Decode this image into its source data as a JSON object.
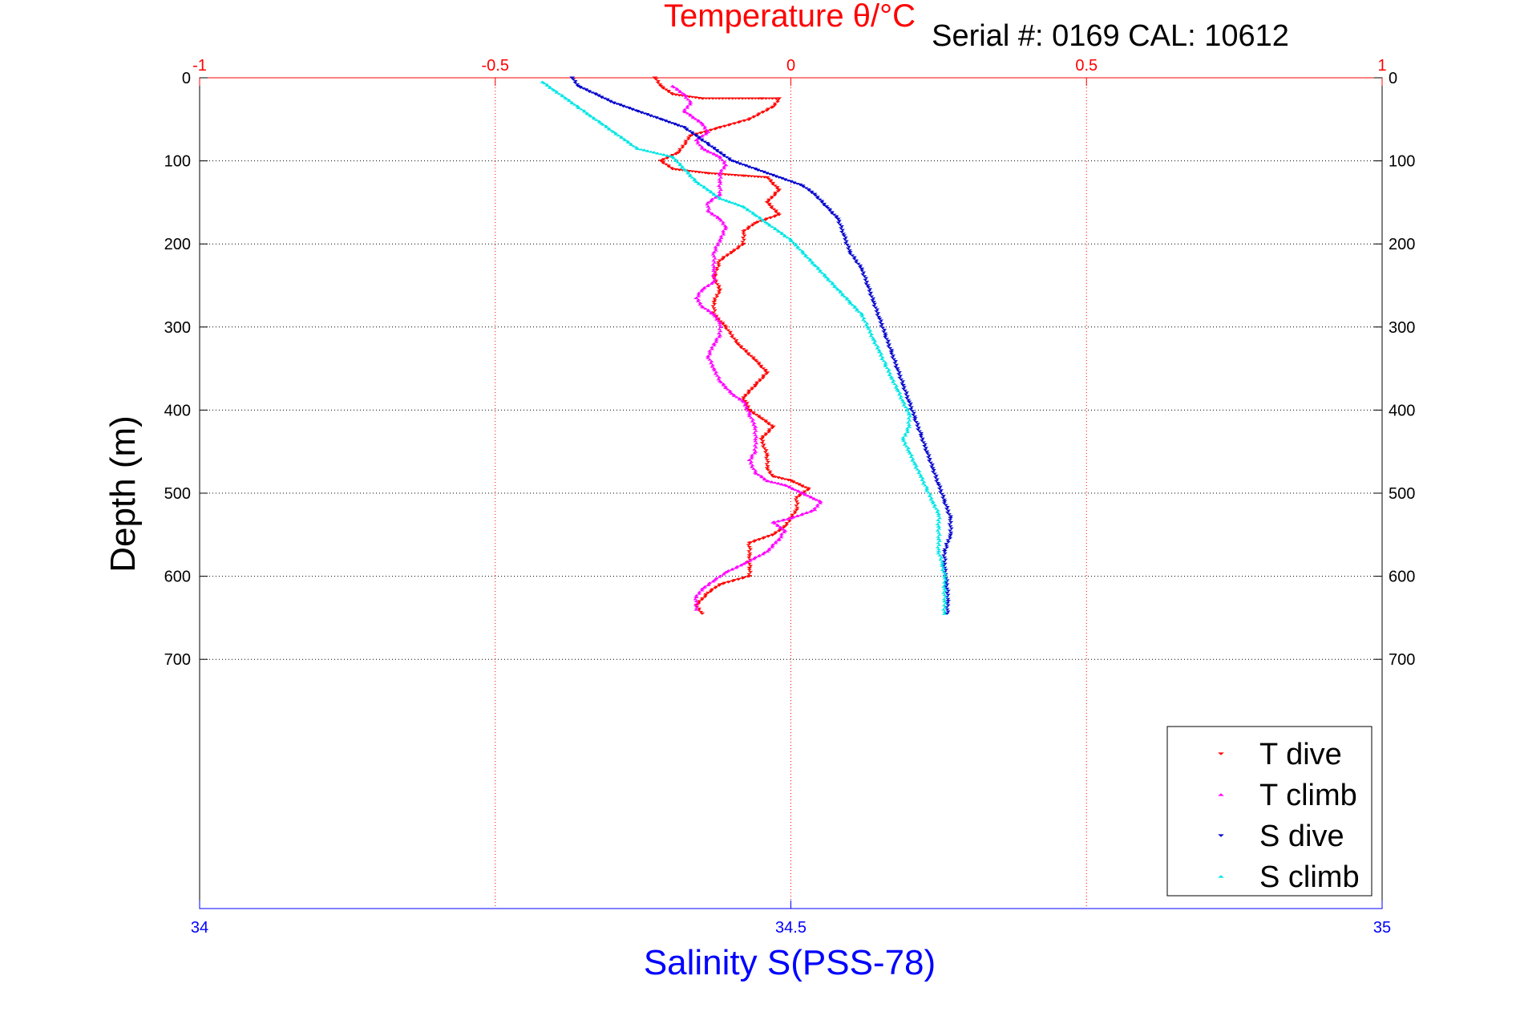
{
  "chart_data": {
    "type": "scatter",
    "title": "Temperature θ/°C",
    "subtitle": "Serial #: 0169 CAL: 10612",
    "ylabel": "Depth (m)",
    "xlabel_bottom": "Salinity S(PSS-78)",
    "xlabel_top": "Temperature θ/°C",
    "ylim": [
      0,
      1000
    ],
    "y_reversed": true,
    "y_ticks": [
      0,
      100,
      200,
      300,
      400,
      500,
      600,
      700
    ],
    "y_tick_labels": [
      "0",
      "100",
      "200",
      "300",
      "400",
      "500",
      "600",
      "700"
    ],
    "temperature_axis": {
      "lim": [
        -1,
        1
      ],
      "ticks": [
        -1,
        -0.5,
        0,
        0.5,
        1
      ],
      "tick_labels": [
        "-1",
        "-0.5",
        "0",
        "0.5",
        "1"
      ],
      "color": "#ff0000"
    },
    "salinity_axis": {
      "lim": [
        34,
        35
      ],
      "ticks": [
        34,
        34.5,
        35
      ],
      "tick_labels": [
        "34",
        "34.5",
        "35"
      ],
      "color": "#0000ff"
    },
    "grid": true,
    "legend_position": "bottom-right",
    "series": [
      {
        "name": "T dive",
        "axis": "temperature",
        "color": "#ff0000",
        "marker": "triangle-down",
        "points": [
          [
            -0.23,
            0
          ],
          [
            -0.22,
            10
          ],
          [
            -0.2,
            20
          ],
          [
            -0.15,
            25
          ],
          [
            -0.05,
            25
          ],
          [
            -0.02,
            25
          ],
          [
            -0.03,
            35
          ],
          [
            -0.07,
            50
          ],
          [
            -0.12,
            60
          ],
          [
            -0.17,
            70
          ],
          [
            -0.19,
            90
          ],
          [
            -0.22,
            100
          ],
          [
            -0.2,
            110
          ],
          [
            -0.14,
            115
          ],
          [
            -0.08,
            118
          ],
          [
            -0.04,
            120
          ],
          [
            -0.02,
            135
          ],
          [
            -0.04,
            150
          ],
          [
            -0.02,
            165
          ],
          [
            -0.06,
            175
          ],
          [
            -0.08,
            185
          ],
          [
            -0.08,
            200
          ],
          [
            -0.1,
            210
          ],
          [
            -0.12,
            220
          ],
          [
            -0.13,
            240
          ],
          [
            -0.12,
            255
          ],
          [
            -0.13,
            270
          ],
          [
            -0.13,
            285
          ],
          [
            -0.11,
            300
          ],
          [
            -0.09,
            320
          ],
          [
            -0.06,
            340
          ],
          [
            -0.04,
            355
          ],
          [
            -0.06,
            370
          ],
          [
            -0.08,
            385
          ],
          [
            -0.07,
            400
          ],
          [
            -0.05,
            410
          ],
          [
            -0.03,
            420
          ],
          [
            -0.05,
            435
          ],
          [
            -0.04,
            455
          ],
          [
            -0.04,
            470
          ],
          [
            -0.03,
            480
          ],
          [
            0.0,
            485
          ],
          [
            0.03,
            495
          ],
          [
            0.01,
            505
          ],
          [
            0.01,
            520
          ],
          [
            0.0,
            530
          ],
          [
            -0.01,
            540
          ],
          [
            -0.03,
            550
          ],
          [
            -0.07,
            560
          ],
          [
            -0.07,
            575
          ],
          [
            -0.07,
            590
          ],
          [
            -0.07,
            600
          ],
          [
            -0.12,
            610
          ],
          [
            -0.14,
            620
          ],
          [
            -0.16,
            635
          ],
          [
            -0.15,
            645
          ]
        ]
      },
      {
        "name": "T climb",
        "axis": "temperature",
        "color": "#ff00ff",
        "marker": "triangle-up",
        "points": [
          [
            -0.2,
            10
          ],
          [
            -0.18,
            20
          ],
          [
            -0.17,
            30
          ],
          [
            -0.18,
            40
          ],
          [
            -0.15,
            55
          ],
          [
            -0.14,
            65
          ],
          [
            -0.16,
            75
          ],
          [
            -0.15,
            85
          ],
          [
            -0.12,
            95
          ],
          [
            -0.11,
            105
          ],
          [
            -0.12,
            115
          ],
          [
            -0.12,
            125
          ],
          [
            -0.12,
            140
          ],
          [
            -0.14,
            150
          ],
          [
            -0.14,
            160
          ],
          [
            -0.12,
            170
          ],
          [
            -0.11,
            180
          ],
          [
            -0.12,
            195
          ],
          [
            -0.13,
            210
          ],
          [
            -0.13,
            230
          ],
          [
            -0.13,
            245
          ],
          [
            -0.15,
            255
          ],
          [
            -0.16,
            265
          ],
          [
            -0.15,
            275
          ],
          [
            -0.13,
            285
          ],
          [
            -0.12,
            295
          ],
          [
            -0.12,
            310
          ],
          [
            -0.13,
            320
          ],
          [
            -0.14,
            335
          ],
          [
            -0.13,
            350
          ],
          [
            -0.12,
            365
          ],
          [
            -0.1,
            380
          ],
          [
            -0.08,
            390
          ],
          [
            -0.07,
            405
          ],
          [
            -0.06,
            420
          ],
          [
            -0.06,
            435
          ],
          [
            -0.06,
            450
          ],
          [
            -0.07,
            460
          ],
          [
            -0.06,
            475
          ],
          [
            -0.04,
            485
          ],
          [
            -0.01,
            490
          ],
          [
            0.02,
            500
          ],
          [
            0.05,
            510
          ],
          [
            0.04,
            520
          ],
          [
            0.0,
            530
          ],
          [
            -0.03,
            535
          ],
          [
            -0.01,
            545
          ],
          [
            -0.02,
            555
          ],
          [
            -0.04,
            570
          ],
          [
            -0.08,
            585
          ],
          [
            -0.11,
            595
          ],
          [
            -0.13,
            605
          ],
          [
            -0.15,
            615
          ],
          [
            -0.16,
            625
          ],
          [
            -0.16,
            640
          ]
        ]
      },
      {
        "name": "S dive",
        "axis": "salinity",
        "color": "#0000cc",
        "marker": "triangle-down",
        "points": [
          [
            34.315,
            0
          ],
          [
            34.32,
            10
          ],
          [
            34.335,
            20
          ],
          [
            34.35,
            30
          ],
          [
            34.37,
            40
          ],
          [
            34.39,
            50
          ],
          [
            34.41,
            60
          ],
          [
            34.42,
            70
          ],
          [
            34.43,
            80
          ],
          [
            34.44,
            90
          ],
          [
            34.45,
            100
          ],
          [
            34.47,
            110
          ],
          [
            34.49,
            120
          ],
          [
            34.51,
            130
          ],
          [
            34.52,
            140
          ],
          [
            34.53,
            155
          ],
          [
            34.54,
            170
          ],
          [
            34.545,
            190
          ],
          [
            34.55,
            210
          ],
          [
            34.56,
            230
          ],
          [
            34.565,
            250
          ],
          [
            34.57,
            270
          ],
          [
            34.575,
            290
          ],
          [
            34.58,
            310
          ],
          [
            34.585,
            330
          ],
          [
            34.59,
            350
          ],
          [
            34.595,
            370
          ],
          [
            34.6,
            390
          ],
          [
            34.605,
            410
          ],
          [
            34.61,
            430
          ],
          [
            34.615,
            450
          ],
          [
            34.62,
            470
          ],
          [
            34.625,
            490
          ],
          [
            34.63,
            510
          ],
          [
            34.635,
            530
          ],
          [
            34.635,
            550
          ],
          [
            34.63,
            570
          ],
          [
            34.63,
            590
          ],
          [
            34.632,
            610
          ],
          [
            34.633,
            630
          ],
          [
            34.632,
            645
          ]
        ]
      },
      {
        "name": "S climb",
        "axis": "salinity",
        "color": "#00e5e5",
        "marker": "triangle-up",
        "points": [
          [
            34.29,
            5
          ],
          [
            34.3,
            15
          ],
          [
            34.31,
            25
          ],
          [
            34.32,
            35
          ],
          [
            34.33,
            45
          ],
          [
            34.34,
            55
          ],
          [
            34.35,
            65
          ],
          [
            34.36,
            75
          ],
          [
            34.37,
            85
          ],
          [
            34.4,
            95
          ],
          [
            34.41,
            110
          ],
          [
            34.42,
            125
          ],
          [
            34.43,
            135
          ],
          [
            34.44,
            145
          ],
          [
            34.46,
            155
          ],
          [
            34.47,
            165
          ],
          [
            34.48,
            175
          ],
          [
            34.49,
            185
          ],
          [
            34.5,
            195
          ],
          [
            34.51,
            210
          ],
          [
            34.52,
            225
          ],
          [
            34.53,
            240
          ],
          [
            34.54,
            255
          ],
          [
            34.55,
            270
          ],
          [
            34.56,
            285
          ],
          [
            34.565,
            300
          ],
          [
            34.57,
            315
          ],
          [
            34.575,
            330
          ],
          [
            34.58,
            345
          ],
          [
            34.585,
            360
          ],
          [
            34.59,
            375
          ],
          [
            34.595,
            390
          ],
          [
            34.6,
            405
          ],
          [
            34.6,
            420
          ],
          [
            34.595,
            435
          ],
          [
            34.6,
            450
          ],
          [
            34.605,
            465
          ],
          [
            34.61,
            480
          ],
          [
            34.615,
            495
          ],
          [
            34.62,
            510
          ],
          [
            34.625,
            525
          ],
          [
            34.625,
            540
          ],
          [
            34.625,
            555
          ],
          [
            34.625,
            570
          ],
          [
            34.628,
            585
          ],
          [
            34.63,
            600
          ],
          [
            34.63,
            615
          ],
          [
            34.63,
            630
          ],
          [
            34.63,
            645
          ]
        ]
      }
    ]
  }
}
